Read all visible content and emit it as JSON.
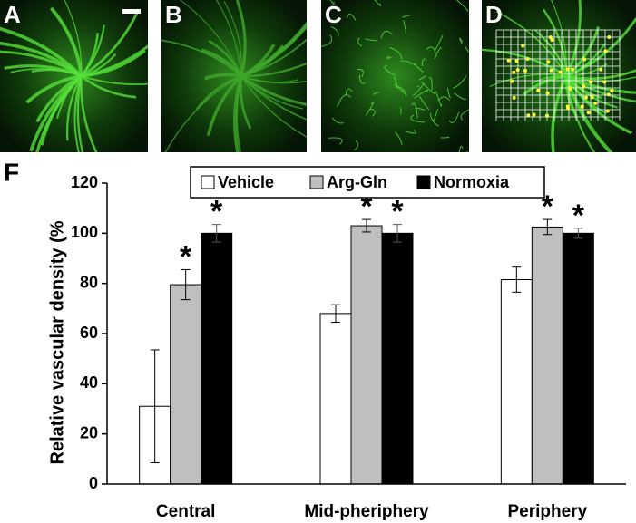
{
  "panels": [
    {
      "label": "A"
    },
    {
      "label": "B"
    },
    {
      "label": "C"
    },
    {
      "label": "D"
    }
  ],
  "chart_data": {
    "type": "bar",
    "panel_label": "F",
    "ylabel": "Relative vascular density (%",
    "categories": [
      "Central",
      "Mid-pheriphery",
      "Periphery"
    ],
    "series": [
      {
        "name": "Vehicle",
        "color": "#ffffff",
        "values": [
          31,
          68,
          81.5
        ],
        "errors": [
          22.5,
          3.5,
          5
        ]
      },
      {
        "name": "Arg-Gln",
        "color": "#bfbfbf",
        "values": [
          79.5,
          103,
          102.5
        ],
        "errors": [
          6,
          2.5,
          3
        ],
        "markers": [
          "*",
          "*",
          "*"
        ]
      },
      {
        "name": "Normoxia",
        "color": "#000000",
        "values": [
          100,
          100,
          100
        ],
        "errors": [
          3.5,
          3.5,
          2
        ],
        "markers": [
          "*",
          "*",
          "*"
        ]
      }
    ],
    "ylim": [
      0,
      120
    ],
    "yticks": [
      0,
      20,
      40,
      60,
      80,
      100,
      120
    ],
    "legend": "top"
  }
}
